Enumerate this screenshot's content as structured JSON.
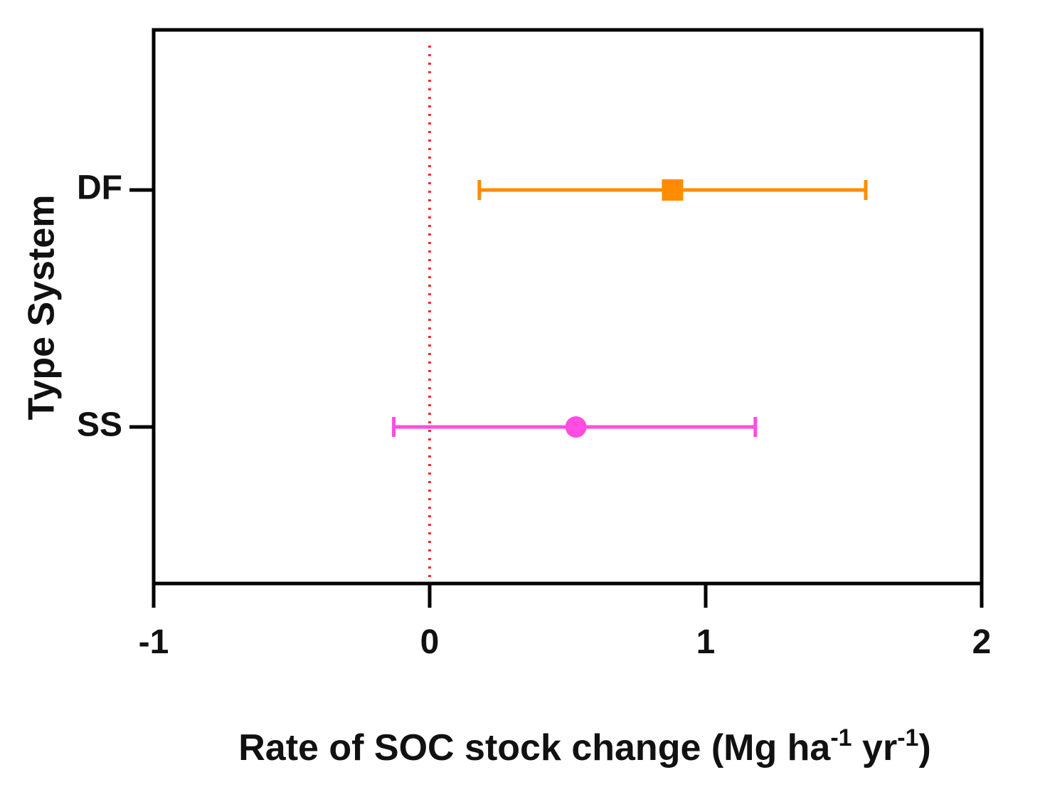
{
  "chart_data": {
    "type": "scatter",
    "xlabel_parts": {
      "main": "Rate of SOC stock change (Mg ha",
      "sup1": "-1",
      "mid": " yr",
      "sup2": "-1",
      "end": ")"
    },
    "ylabel": "Type System",
    "xlim": [
      -1,
      2
    ],
    "xticks": [
      -1,
      0,
      1,
      2
    ],
    "xtick_labels": [
      "-1",
      "0",
      "1",
      "2"
    ],
    "categories": [
      "DF",
      "SS"
    ],
    "reference_line": {
      "x": 0,
      "style": "dotted",
      "color": "#ff2a2a"
    },
    "grid": false,
    "series": [
      {
        "category": "DF",
        "mean": 0.88,
        "lower": 0.18,
        "upper": 1.58,
        "marker": "square",
        "color": "#ff8c00"
      },
      {
        "category": "SS",
        "mean": 0.53,
        "lower": -0.13,
        "upper": 1.18,
        "marker": "circle",
        "color": "#ff4de3"
      }
    ]
  }
}
